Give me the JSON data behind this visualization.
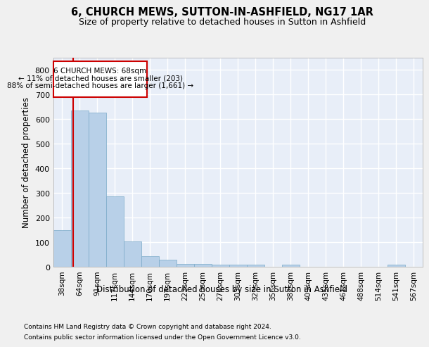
{
  "title": "6, CHURCH MEWS, SUTTON-IN-ASHFIELD, NG17 1AR",
  "subtitle": "Size of property relative to detached houses in Sutton in Ashfield",
  "xlabel": "Distribution of detached houses by size in Sutton in Ashfield",
  "ylabel": "Number of detached properties",
  "categories": [
    "38sqm",
    "64sqm",
    "91sqm",
    "117sqm",
    "144sqm",
    "170sqm",
    "197sqm",
    "223sqm",
    "250sqm",
    "276sqm",
    "303sqm",
    "329sqm",
    "356sqm",
    "382sqm",
    "409sqm",
    "435sqm",
    "461sqm",
    "488sqm",
    "514sqm",
    "541sqm",
    "567sqm"
  ],
  "values": [
    150,
    635,
    627,
    287,
    103,
    42,
    29,
    11,
    12,
    10,
    10,
    10,
    0,
    8,
    0,
    0,
    0,
    0,
    0,
    8,
    0
  ],
  "bar_color": "#b8d0e8",
  "bar_edge_color": "#7aaac8",
  "property_label": "6 CHURCH MEWS: 68sqm",
  "annotation_line1": "← 11% of detached houses are smaller (203)",
  "annotation_line2": "88% of semi-detached houses are larger (1,661) →",
  "vline_color": "#cc0000",
  "box_color": "#cc0000",
  "ylim": [
    0,
    850
  ],
  "yticks": [
    0,
    100,
    200,
    300,
    400,
    500,
    600,
    700,
    800
  ],
  "footnote1": "Contains HM Land Registry data © Crown copyright and database right 2024.",
  "footnote2": "Contains public sector information licensed under the Open Government Licence v3.0.",
  "bg_color": "#e8eef8",
  "grid_color": "#ffffff",
  "fig_bg_color": "#f0f0f0"
}
